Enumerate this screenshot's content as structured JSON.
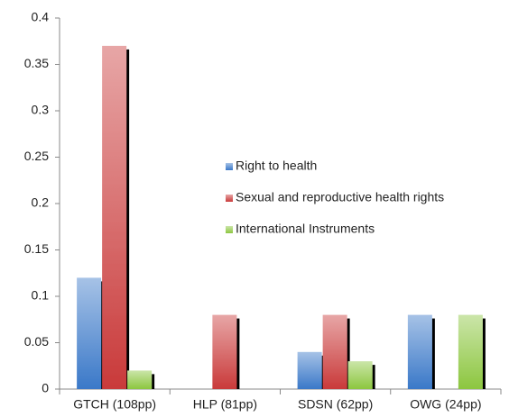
{
  "chart_data": {
    "type": "bar",
    "categories": [
      "GTCH (108pp)",
      "HLP (81pp)",
      "SDSN (62pp)",
      "OWG (24pp)"
    ],
    "series": [
      {
        "name": "Right to health",
        "color": "#3a78c8",
        "values": [
          0.12,
          0,
          0.04,
          0.08
        ]
      },
      {
        "name": "Sexual and reproductive health rights",
        "color": "#c93a3a",
        "values": [
          0.37,
          0.08,
          0.08,
          0
        ]
      },
      {
        "name": "International Instruments",
        "color": "#8cc63f",
        "values": [
          0.02,
          0,
          0.03,
          0.08
        ]
      }
    ],
    "ylim": [
      0,
      0.4
    ],
    "yticks": [
      0,
      0.05,
      0.1,
      0.15,
      0.2,
      0.25,
      0.3,
      0.35,
      0.4
    ],
    "legend": "center"
  }
}
